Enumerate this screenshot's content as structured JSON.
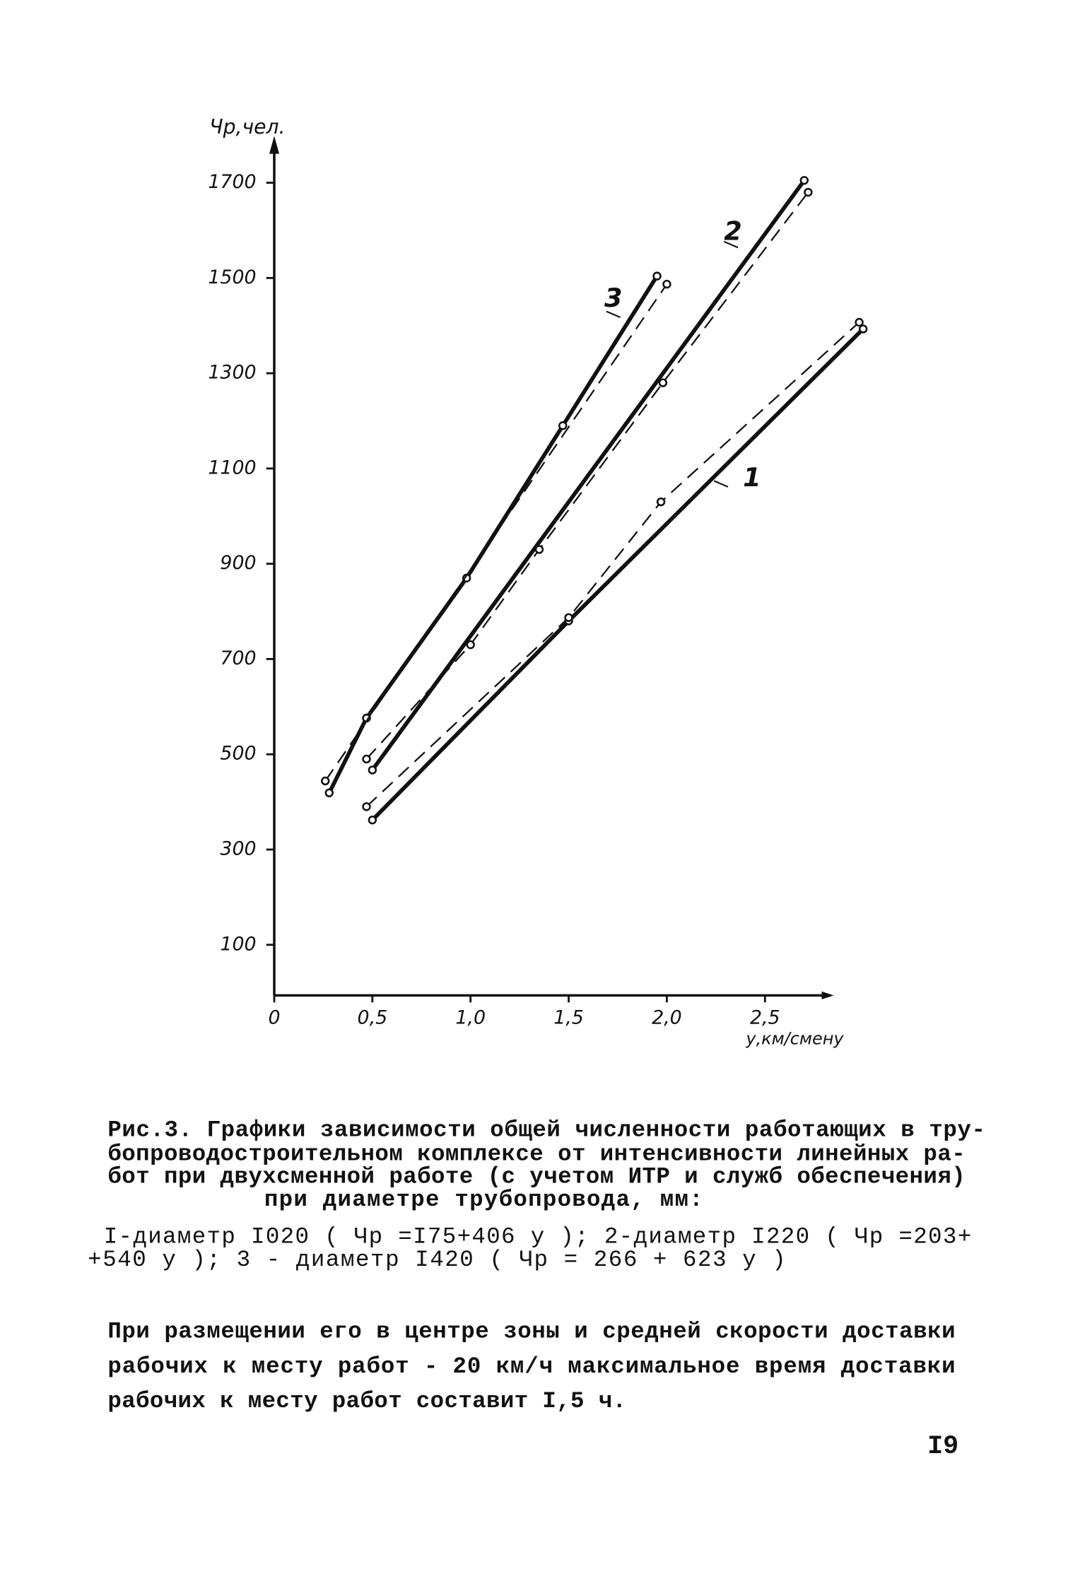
{
  "chart_data": {
    "type": "line",
    "y_label": "Чр,чел.",
    "x_label": "у,км/смену",
    "xlim": [
      0,
      2.85
    ],
    "ylim": [
      0,
      1790
    ],
    "xticks": [
      0,
      {
        "value": 0.5,
        "label": "0,5"
      },
      {
        "value": 1.0,
        "label": "1,0"
      },
      {
        "value": 1.5,
        "label": "1,5"
      },
      {
        "value": 2.0,
        "label": "2,0"
      },
      {
        "value": 2.5,
        "label": "2,5"
      }
    ],
    "yticks": [
      100,
      300,
      500,
      700,
      900,
      1100,
      1300,
      1500,
      1700
    ],
    "color": "#111111",
    "series": [
      {
        "name": "1",
        "style": "solid",
        "x": [
          0.5,
          1.5,
          3.0
        ],
        "values": [
          362,
          780,
          1393
        ]
      },
      {
        "name": "2",
        "style": "solid",
        "x": [
          0.5,
          2.7
        ],
        "values": [
          467,
          1705
        ]
      },
      {
        "name": "3",
        "style": "solid",
        "x": [
          0.28,
          0.47,
          0.98,
          1.47,
          1.95
        ],
        "values": [
          419,
          576,
          870,
          1190,
          1504
        ]
      },
      {
        "style": "dashed",
        "x": [
          0.47,
          1.5,
          1.97,
          2.98
        ],
        "values": [
          390,
          787,
          1030,
          1407
        ]
      },
      {
        "style": "dashed",
        "x": [
          0.47,
          1.0,
          1.35,
          1.98,
          2.72
        ],
        "values": [
          490,
          730,
          930,
          1280,
          1680
        ]
      },
      {
        "style": "dashed",
        "x": [
          0.26,
          2.0
        ],
        "values": [
          444,
          1487
        ]
      }
    ]
  },
  "caption": [
    "Рис.3. Графики зависимости общей численности работающих в тру-",
    "бопроводостроительном комплексе от интенсивности линейных ра-",
    "бот при двухсменной работе (с учетом ИТР и служб обеспечения)",
    "при диаметре трубопровода, мм:"
  ],
  "formulas": [
    "I-диаметр I020 ( Чр =I75+406 у ); 2-диаметр I220 ( Чр =203+",
    "+540 у ); 3 - диаметр I420 ( Чр = 266 + 623 у )"
  ],
  "body": [
    "При размещении его в центре зоны и средней скорости доставки",
    "рабочих к месту работ - 20 км/ч максимальное время  доставки",
    "рабочих к месту работ составит I,5 ч."
  ],
  "page_number": "I9"
}
